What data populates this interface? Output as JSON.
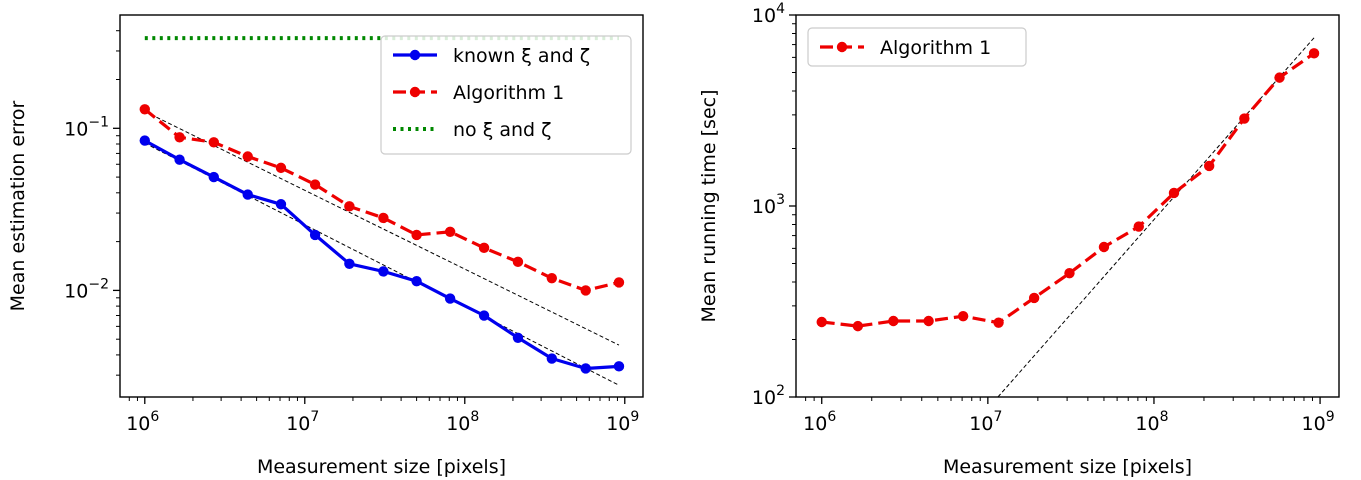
{
  "chart_data": [
    {
      "type": "line",
      "xscale": "log",
      "yscale": "log",
      "xlim": [
        700000,
        1300000000
      ],
      "ylim": [
        0.0022,
        0.5
      ],
      "xlabel": "Measurement size [pixels]",
      "ylabel": "Mean estimation error",
      "xticks": [
        {
          "value": 1000000,
          "base": "10",
          "exp": "6"
        },
        {
          "value": 10000000,
          "base": "10",
          "exp": "7"
        },
        {
          "value": 100000000,
          "base": "10",
          "exp": "8"
        },
        {
          "value": 1000000000,
          "base": "10",
          "exp": "9"
        }
      ],
      "yticks": [
        {
          "value": 0.01,
          "base": "10",
          "exp": "−2"
        },
        {
          "value": 0.1,
          "base": "10",
          "exp": "−1"
        }
      ],
      "x": [
        1000000,
        1650000,
        2700000,
        4400000,
        7100000,
        11600000,
        19000000,
        31000000,
        50000000,
        81000000,
        132000000,
        215000000,
        350000000,
        570000000,
        920000000
      ],
      "series": [
        {
          "name": "known ξ and ζ",
          "color": "#0000ee",
          "style": "solid",
          "values": [
            0.084,
            0.064,
            0.05,
            0.039,
            0.034,
            0.022,
            0.0146,
            0.0131,
            0.0114,
            0.0089,
            0.007,
            0.0051,
            0.0038,
            0.0033,
            0.0034
          ]
        },
        {
          "name": "Algorithm 1",
          "color": "#ee0000",
          "style": "dashed",
          "values": [
            0.131,
            0.088,
            0.082,
            0.067,
            0.057,
            0.045,
            0.033,
            0.028,
            0.022,
            0.023,
            0.0183,
            0.015,
            0.0119,
            0.01,
            0.0112
          ]
        },
        {
          "name": "no ξ and ζ",
          "color": "#008800",
          "style": "dotted",
          "x": [
            1000000,
            920000000
          ],
          "values": [
            0.36,
            0.36
          ]
        }
      ],
      "reference_lines": [
        {
          "x": [
            1000000,
            920000000
          ],
          "y": [
            0.127,
            0.0046
          ]
        },
        {
          "x": [
            1000000,
            920000000
          ],
          "y": [
            0.081,
            0.0026
          ]
        }
      ],
      "legend_position": "upper-right",
      "grid": false
    },
    {
      "type": "line",
      "xscale": "log",
      "yscale": "log",
      "xlim": [
        700000,
        1300000000
      ],
      "ylim": [
        100,
        10000
      ],
      "xlabel": "Measurement size [pixels]",
      "ylabel": "Mean running time [sec]",
      "xticks": [
        {
          "value": 1000000,
          "base": "10",
          "exp": "6"
        },
        {
          "value": 10000000,
          "base": "10",
          "exp": "7"
        },
        {
          "value": 100000000,
          "base": "10",
          "exp": "8"
        },
        {
          "value": 1000000000,
          "base": "10",
          "exp": "9"
        }
      ],
      "yticks": [
        {
          "value": 100,
          "base": "10",
          "exp": "2"
        },
        {
          "value": 1000,
          "base": "10",
          "exp": "3"
        },
        {
          "value": 10000,
          "base": "10",
          "exp": "4"
        }
      ],
      "x": [
        1000000,
        1650000,
        2700000,
        4400000,
        7100000,
        11600000,
        19000000,
        31000000,
        50000000,
        81000000,
        132000000,
        215000000,
        350000000,
        570000000,
        920000000
      ],
      "series": [
        {
          "name": "Algorithm 1",
          "color": "#ee0000",
          "style": "dashed",
          "values": [
            247,
            235,
            250,
            250,
            265,
            245,
            330,
            445,
            610,
            780,
            1170,
            1620,
            2870,
            4700,
            6300
          ]
        }
      ],
      "reference_lines": [
        {
          "x": [
            11500000,
            920000000
          ],
          "y": [
            100,
            7600
          ]
        }
      ],
      "legend_position": "upper-left",
      "grid": false
    }
  ]
}
